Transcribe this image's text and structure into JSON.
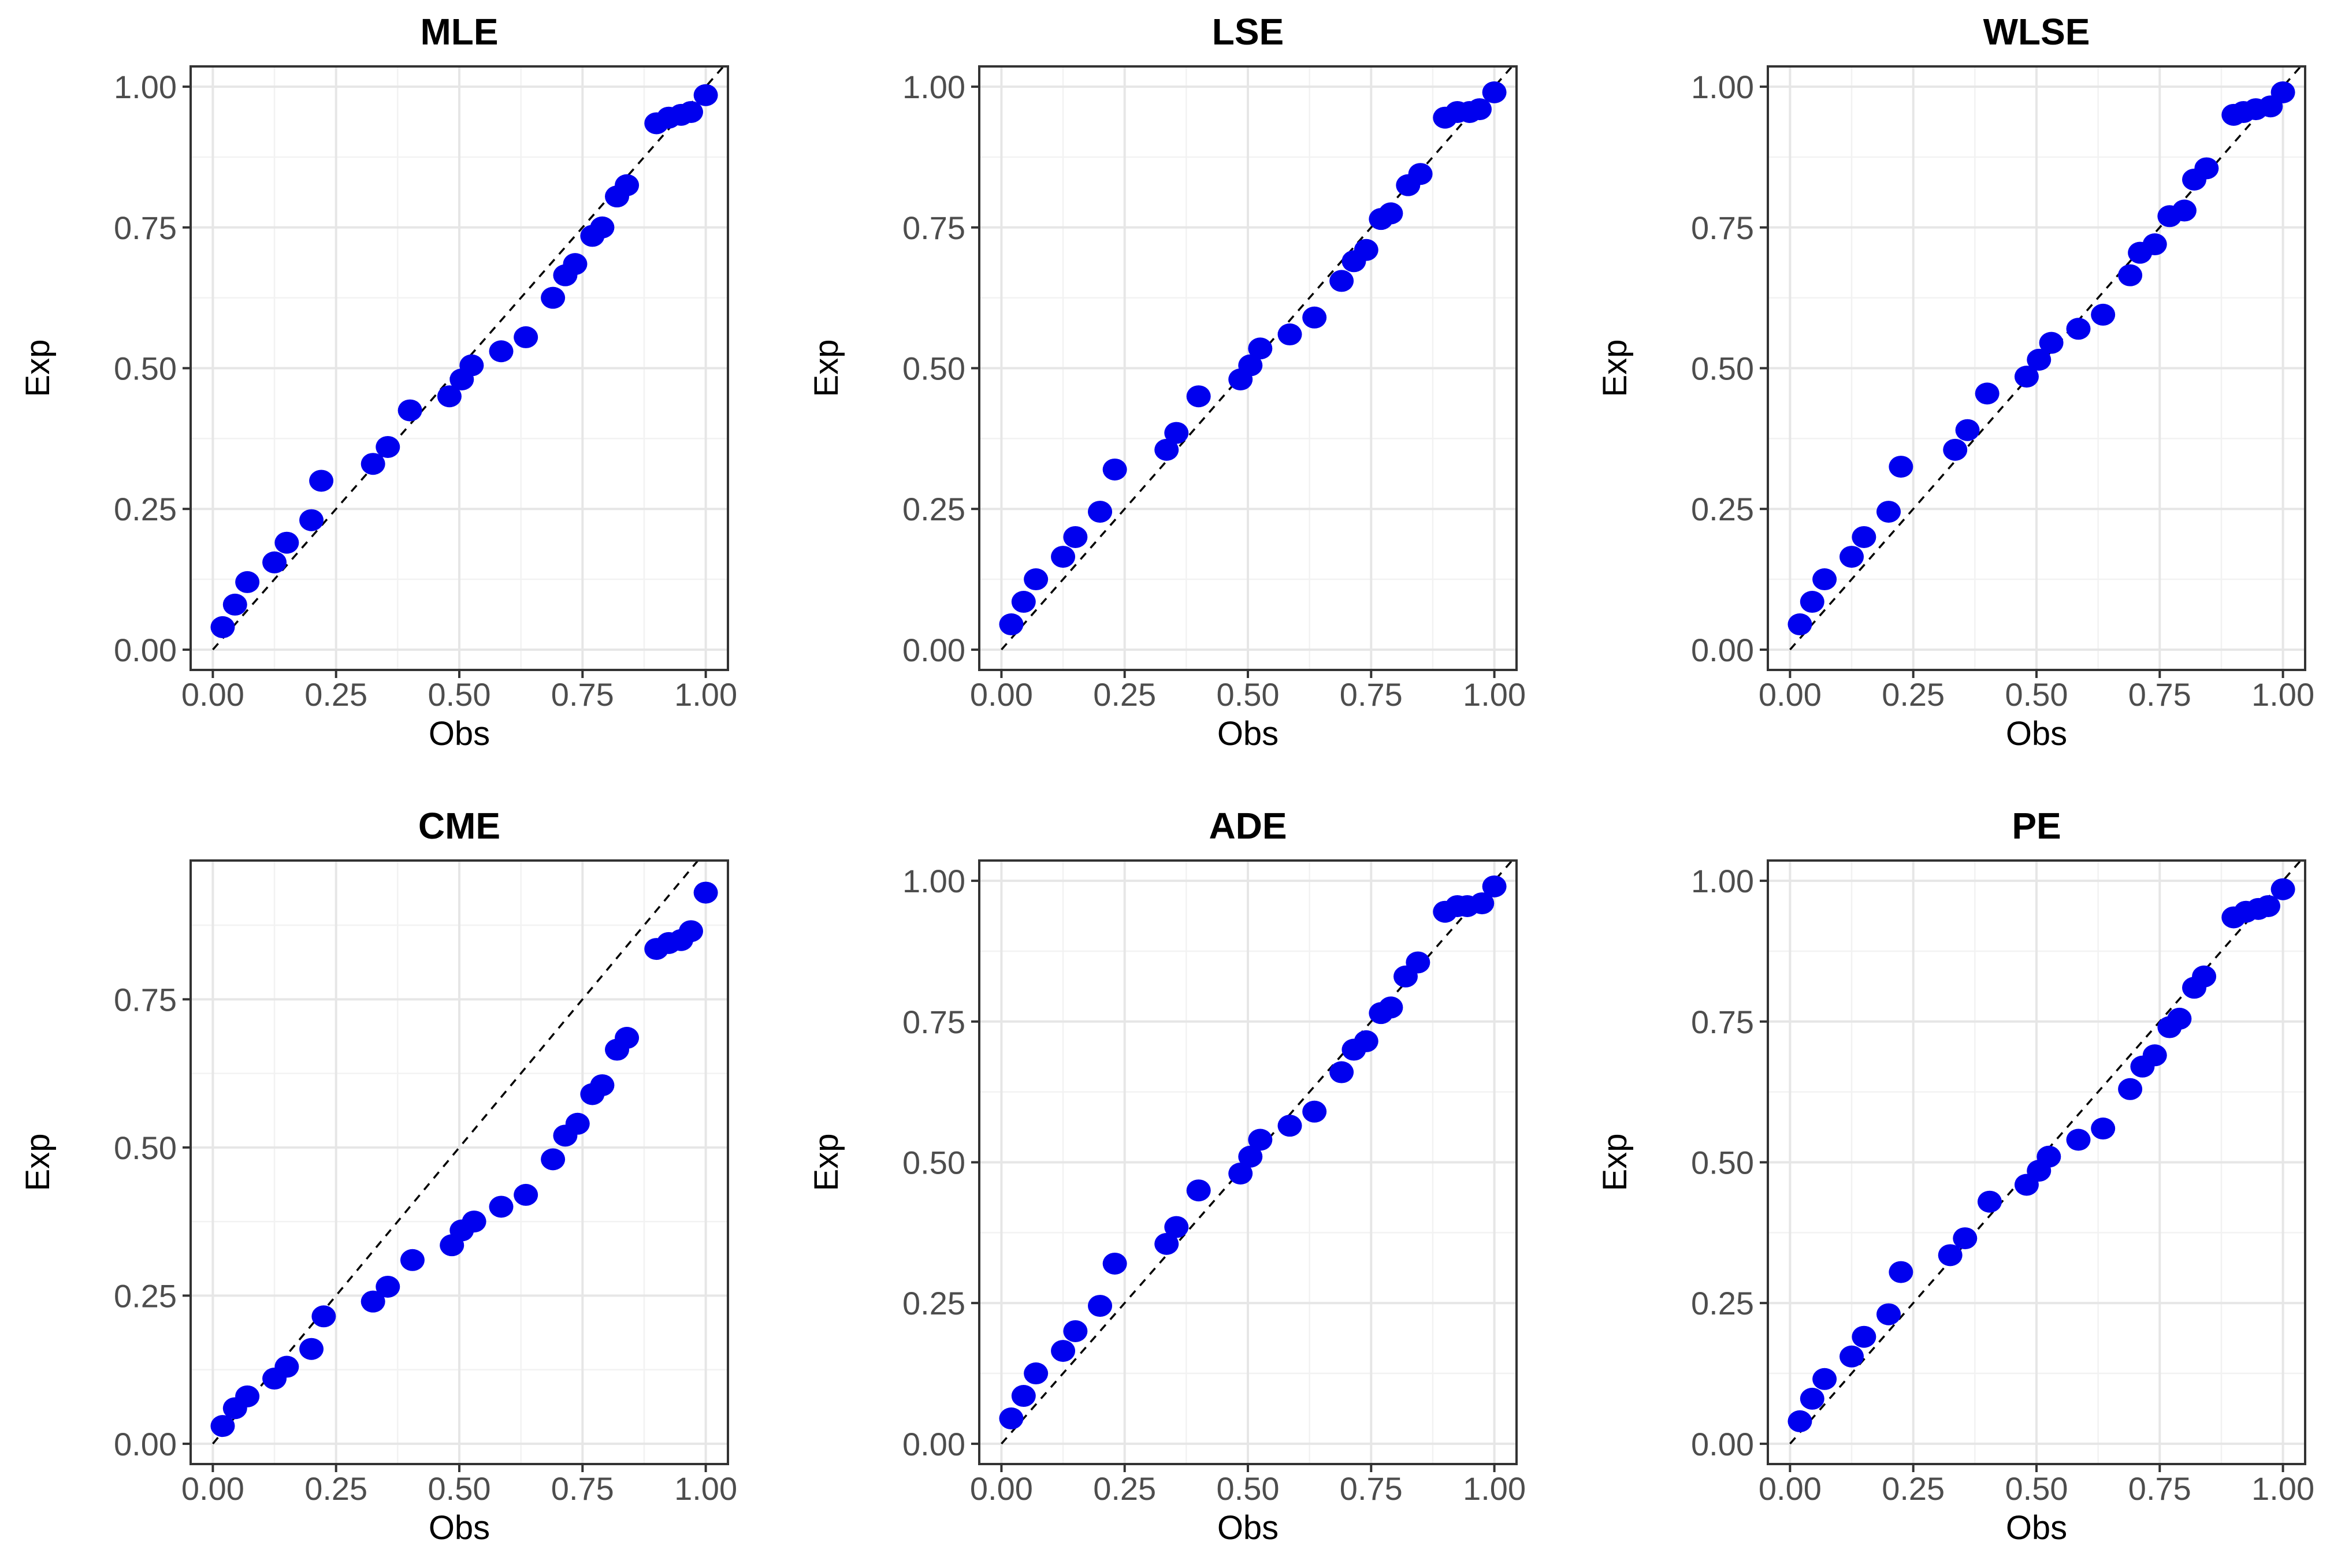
{
  "chart_data": [
    {
      "type": "scatter",
      "title": "MLE",
      "xlabel": "Obs",
      "ylabel": "Exp",
      "xlim": [
        0,
        1
      ],
      "ylim": [
        0,
        1
      ],
      "xticks": [
        "0.00",
        "0.25",
        "0.50",
        "0.75",
        "1.00"
      ],
      "yticks": [
        "0.00",
        "0.25",
        "0.50",
        "0.75",
        "1.00"
      ],
      "grid": true,
      "reference_line": "y = x",
      "x": [
        0.02,
        0.045,
        0.07,
        0.125,
        0.15,
        0.2,
        0.22,
        0.325,
        0.355,
        0.4,
        0.48,
        0.505,
        0.525,
        0.585,
        0.635,
        0.69,
        0.715,
        0.735,
        0.77,
        0.79,
        0.82,
        0.84,
        0.9,
        0.925,
        0.95,
        0.97,
        1.0
      ],
      "y": [
        0.04,
        0.08,
        0.12,
        0.155,
        0.19,
        0.23,
        0.3,
        0.33,
        0.36,
        0.425,
        0.45,
        0.48,
        0.505,
        0.53,
        0.555,
        0.625,
        0.665,
        0.685,
        0.735,
        0.75,
        0.805,
        0.825,
        0.935,
        0.945,
        0.95,
        0.955,
        0.985
      ]
    },
    {
      "type": "scatter",
      "title": "LSE",
      "xlabel": "Obs",
      "ylabel": "Exp",
      "xlim": [
        0,
        1
      ],
      "ylim": [
        0,
        1
      ],
      "xticks": [
        "0.00",
        "0.25",
        "0.50",
        "0.75",
        "1.00"
      ],
      "yticks": [
        "0.00",
        "0.25",
        "0.50",
        "0.75",
        "1.00"
      ],
      "grid": true,
      "reference_line": "y = x",
      "x": [
        0.02,
        0.045,
        0.07,
        0.125,
        0.15,
        0.2,
        0.23,
        0.335,
        0.355,
        0.4,
        0.485,
        0.505,
        0.525,
        0.585,
        0.635,
        0.69,
        0.715,
        0.74,
        0.77,
        0.79,
        0.825,
        0.85,
        0.9,
        0.925,
        0.95,
        0.97,
        1.0
      ],
      "y": [
        0.045,
        0.085,
        0.125,
        0.165,
        0.2,
        0.245,
        0.32,
        0.355,
        0.385,
        0.45,
        0.48,
        0.505,
        0.535,
        0.56,
        0.59,
        0.655,
        0.69,
        0.71,
        0.765,
        0.775,
        0.825,
        0.845,
        0.945,
        0.955,
        0.955,
        0.96,
        0.99
      ]
    },
    {
      "type": "scatter",
      "title": "WLSE",
      "xlabel": "Obs",
      "ylabel": "Exp",
      "xlim": [
        0,
        1
      ],
      "ylim": [
        0,
        1
      ],
      "xticks": [
        "0.00",
        "0.25",
        "0.50",
        "0.75",
        "1.00"
      ],
      "yticks": [
        "0.00",
        "0.25",
        "0.50",
        "0.75",
        "1.00"
      ],
      "grid": true,
      "reference_line": "y = x",
      "x": [
        0.02,
        0.045,
        0.07,
        0.125,
        0.15,
        0.2,
        0.225,
        0.335,
        0.36,
        0.4,
        0.48,
        0.505,
        0.53,
        0.585,
        0.635,
        0.69,
        0.71,
        0.74,
        0.77,
        0.8,
        0.82,
        0.845,
        0.9,
        0.92,
        0.945,
        0.975,
        1.0
      ],
      "y": [
        0.045,
        0.085,
        0.125,
        0.165,
        0.2,
        0.245,
        0.325,
        0.355,
        0.39,
        0.455,
        0.485,
        0.515,
        0.545,
        0.57,
        0.595,
        0.665,
        0.705,
        0.72,
        0.77,
        0.78,
        0.835,
        0.855,
        0.95,
        0.955,
        0.96,
        0.965,
        0.99
      ]
    },
    {
      "type": "scatter",
      "title": "CME",
      "xlabel": "Obs",
      "ylabel": "Exp",
      "xlim": [
        0,
        1
      ],
      "ylim": [
        0,
        0.95
      ],
      "xticks": [
        "0.00",
        "0.25",
        "0.50",
        "0.75",
        "1.00"
      ],
      "yticks": [
        "0.00",
        "0.25",
        "0.50",
        "0.75"
      ],
      "grid": true,
      "reference_line": "y = x",
      "x": [
        0.02,
        0.045,
        0.07,
        0.125,
        0.15,
        0.2,
        0.225,
        0.325,
        0.355,
        0.405,
        0.485,
        0.505,
        0.53,
        0.585,
        0.635,
        0.69,
        0.715,
        0.74,
        0.77,
        0.79,
        0.82,
        0.84,
        0.9,
        0.925,
        0.95,
        0.97,
        1.0
      ],
      "y": [
        0.03,
        0.06,
        0.08,
        0.11,
        0.13,
        0.16,
        0.215,
        0.24,
        0.265,
        0.31,
        0.335,
        0.36,
        0.375,
        0.4,
        0.42,
        0.48,
        0.52,
        0.54,
        0.59,
        0.605,
        0.665,
        0.685,
        0.835,
        0.845,
        0.85,
        0.865,
        0.93
      ]
    },
    {
      "type": "scatter",
      "title": "ADE",
      "xlabel": "Obs",
      "ylabel": "Exp",
      "xlim": [
        0,
        1
      ],
      "ylim": [
        0,
        1
      ],
      "xticks": [
        "0.00",
        "0.25",
        "0.50",
        "0.75",
        "1.00"
      ],
      "yticks": [
        "0.00",
        "0.25",
        "0.50",
        "0.75",
        "1.00"
      ],
      "grid": true,
      "reference_line": "y = x",
      "x": [
        0.02,
        0.045,
        0.07,
        0.125,
        0.15,
        0.2,
        0.23,
        0.335,
        0.355,
        0.4,
        0.485,
        0.505,
        0.525,
        0.585,
        0.635,
        0.69,
        0.715,
        0.74,
        0.77,
        0.79,
        0.82,
        0.845,
        0.9,
        0.925,
        0.945,
        0.975,
        1.0
      ],
      "y": [
        0.045,
        0.085,
        0.125,
        0.165,
        0.2,
        0.245,
        0.32,
        0.355,
        0.385,
        0.45,
        0.48,
        0.51,
        0.54,
        0.565,
        0.59,
        0.66,
        0.7,
        0.715,
        0.765,
        0.775,
        0.83,
        0.855,
        0.945,
        0.955,
        0.955,
        0.96,
        0.99
      ]
    },
    {
      "type": "scatter",
      "title": "PE",
      "xlabel": "Obs",
      "ylabel": "Exp",
      "xlim": [
        0,
        1
      ],
      "ylim": [
        0,
        1
      ],
      "xticks": [
        "0.00",
        "0.25",
        "0.50",
        "0.75",
        "1.00"
      ],
      "yticks": [
        "0.00",
        "0.25",
        "0.50",
        "0.75",
        "1.00"
      ],
      "grid": true,
      "reference_line": "y = x",
      "x": [
        0.02,
        0.045,
        0.07,
        0.125,
        0.15,
        0.2,
        0.225,
        0.325,
        0.355,
        0.405,
        0.48,
        0.505,
        0.525,
        0.585,
        0.635,
        0.69,
        0.715,
        0.74,
        0.77,
        0.79,
        0.82,
        0.84,
        0.9,
        0.925,
        0.95,
        0.97,
        1.0
      ],
      "y": [
        0.04,
        0.08,
        0.115,
        0.155,
        0.19,
        0.23,
        0.305,
        0.335,
        0.365,
        0.43,
        0.46,
        0.485,
        0.51,
        0.54,
        0.56,
        0.63,
        0.67,
        0.69,
        0.74,
        0.755,
        0.81,
        0.83,
        0.935,
        0.945,
        0.95,
        0.955,
        0.985
      ]
    }
  ],
  "colors": {
    "points": "#0000ee",
    "reference_line": "#000000",
    "grid_major": "#e6e6e6",
    "grid_minor": "#f2f2f2",
    "panel_border": "#333333",
    "background": "#ffffff"
  }
}
